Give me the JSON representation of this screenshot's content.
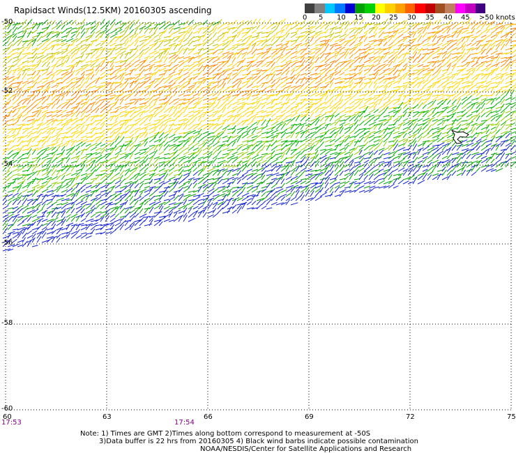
{
  "title": "Rapidsact Winds(12.5KM) 20160305 ascending",
  "colorbar": {
    "colors": [
      "#404040",
      "#808080",
      "#00c8ff",
      "#0078ff",
      "#0000d0",
      "#00a000",
      "#00d000",
      "#ffff00",
      "#ffd000",
      "#ffa000",
      "#ff6000",
      "#ff0000",
      "#c00000",
      "#a05020",
      "#c08060",
      "#ff00ff",
      "#c000c0",
      "#400080"
    ],
    "labels": [
      "0",
      "5",
      "10",
      "15",
      "20",
      "25",
      "30",
      "35",
      "40",
      "45",
      ">50 knots"
    ]
  },
  "lat_labels": [
    "-50",
    "-52",
    "-54",
    "-56",
    "-58",
    "-60"
  ],
  "lon_labels": [
    "60",
    "63",
    "66",
    "69",
    "72",
    "75"
  ],
  "time_labels": [
    "17:53",
    "17:54"
  ],
  "notes": [
    "Note: 1) Times are GMT 2)Times along bottom correspond to measurement at -50S",
    "3)Data buffer is 22 hrs from 20160305 4) Black wind barbs indicate possible contamination",
    "NOAA/NESDIS/Center for Satellite Applications and Research"
  ]
}
